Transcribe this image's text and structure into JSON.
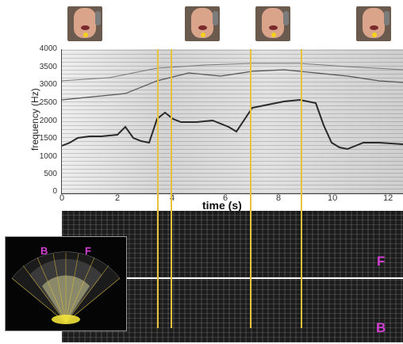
{
  "figure": {
    "ylabel": "frequency  (Hz)",
    "xlabel": "time   (s)",
    "yticks": [
      "4000",
      "3500",
      "3000",
      "2500",
      "2000",
      "1500",
      "1000",
      "500",
      "0"
    ],
    "xticks": [
      "0",
      "2",
      "4",
      "6",
      "8",
      "10",
      "12"
    ],
    "label_f": "F",
    "label_b": "B",
    "ultrasound_labels": {
      "b": "B",
      "f": "F"
    },
    "accent_color": "#e8c23a",
    "label_color": "#d23fd2"
  }
}
